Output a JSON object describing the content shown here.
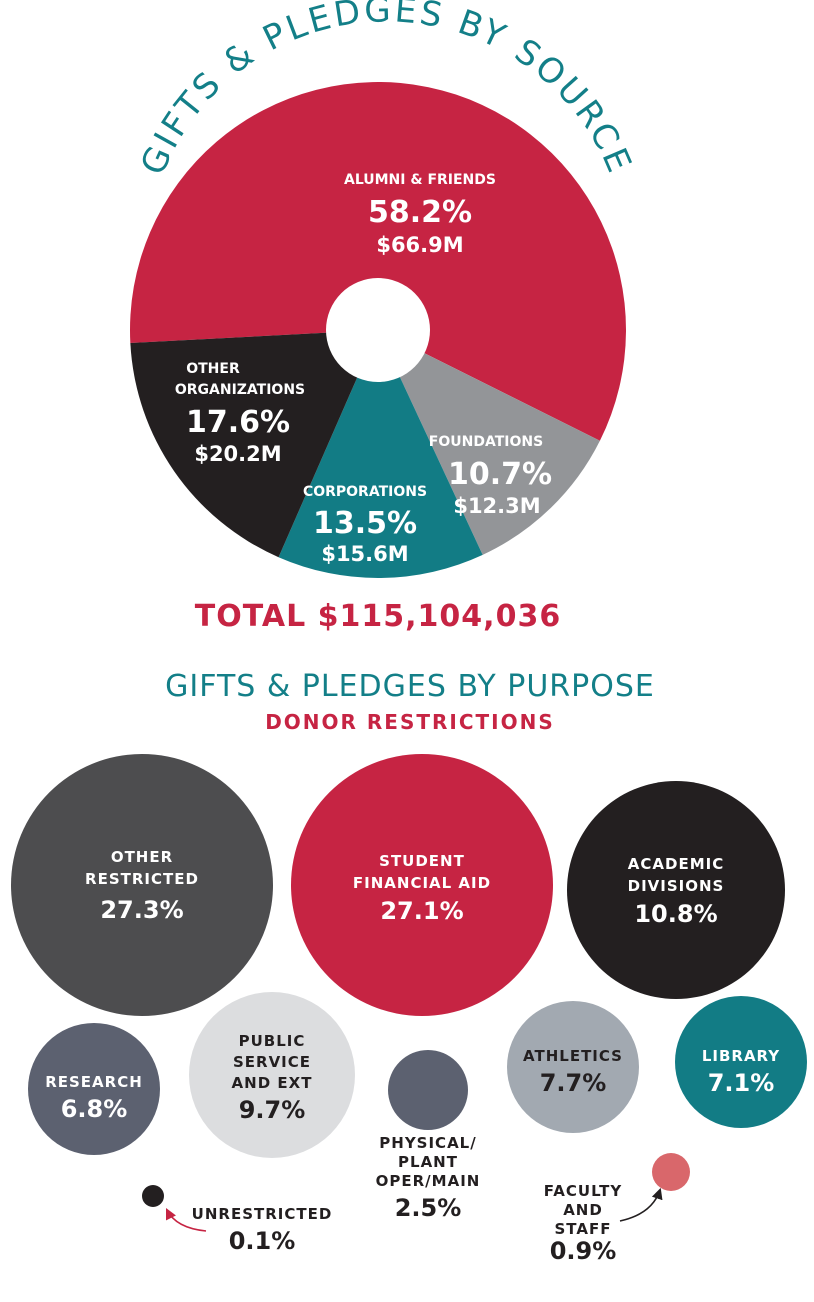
{
  "chart_data": [
    {
      "type": "pie",
      "title": "GIFTS & PLEDGES BY SOURCE",
      "total_label": "TOTAL $115,104,036",
      "slices": [
        {
          "label": "ALUMNI & FRIENDS",
          "percent": 58.2,
          "percent_label": "58.2%",
          "amount": 66.9,
          "amount_label": "$66.9M",
          "color": "#c62443"
        },
        {
          "label": "FOUNDATIONS",
          "percent": 10.7,
          "percent_label": "10.7%",
          "amount": 12.3,
          "amount_label": "$12.3M",
          "color": "#939598"
        },
        {
          "label": "CORPORATIONS",
          "percent": 13.5,
          "percent_label": "13.5%",
          "amount": 15.6,
          "amount_label": "$15.6M",
          "color": "#127c85"
        },
        {
          "label": "OTHER ORGANIZATIONS",
          "percent": 17.6,
          "percent_label": "17.6%",
          "amount": 20.2,
          "amount_label": "$20.2M",
          "color": "#231f20"
        }
      ]
    },
    {
      "type": "bubble",
      "title": "GIFTS & PLEDGES BY PURPOSE",
      "subtitle": "DONOR RESTRICTIONS",
      "items": [
        {
          "label": "OTHER RESTRICTED",
          "value": 27.3,
          "value_label": "27.3%",
          "color": "#4d4d4f",
          "text_color": "#ffffff"
        },
        {
          "label": "STUDENT FINANCIAL AID",
          "value": 27.1,
          "value_label": "27.1%",
          "color": "#c62443",
          "text_color": "#ffffff"
        },
        {
          "label": "ACADEMIC DIVISIONS",
          "value": 10.8,
          "value_label": "10.8%",
          "color": "#231f20",
          "text_color": "#ffffff"
        },
        {
          "label": "RESEARCH",
          "value": 6.8,
          "value_label": "6.8%",
          "color": "#5c6170",
          "text_color": "#ffffff"
        },
        {
          "label": "PUBLIC SERVICE AND EXT",
          "value": 9.7,
          "value_label": "9.7%",
          "color": "#dcdddf",
          "text_color": "#231f20"
        },
        {
          "label": "PHYSICAL/ PLANT OPER/MAIN",
          "value": 2.5,
          "value_label": "2.5%",
          "color": "#5c6170",
          "text_color": "#231f20"
        },
        {
          "label": "ATHLETICS",
          "value": 7.7,
          "value_label": "7.7%",
          "color": "#a2a9b1",
          "text_color": "#231f20"
        },
        {
          "label": "LIBRARY",
          "value": 7.1,
          "value_label": "7.1%",
          "color": "#127c85",
          "text_color": "#ffffff"
        },
        {
          "label": "UNRESTRICTED",
          "value": 0.1,
          "value_label": "0.1%",
          "color": "#231f20",
          "text_color": "#231f20"
        },
        {
          "label": "FACULTY AND STAFF",
          "value": 0.9,
          "value_label": "0.9%",
          "color": "#d9676b",
          "text_color": "#231f20"
        }
      ]
    }
  ]
}
